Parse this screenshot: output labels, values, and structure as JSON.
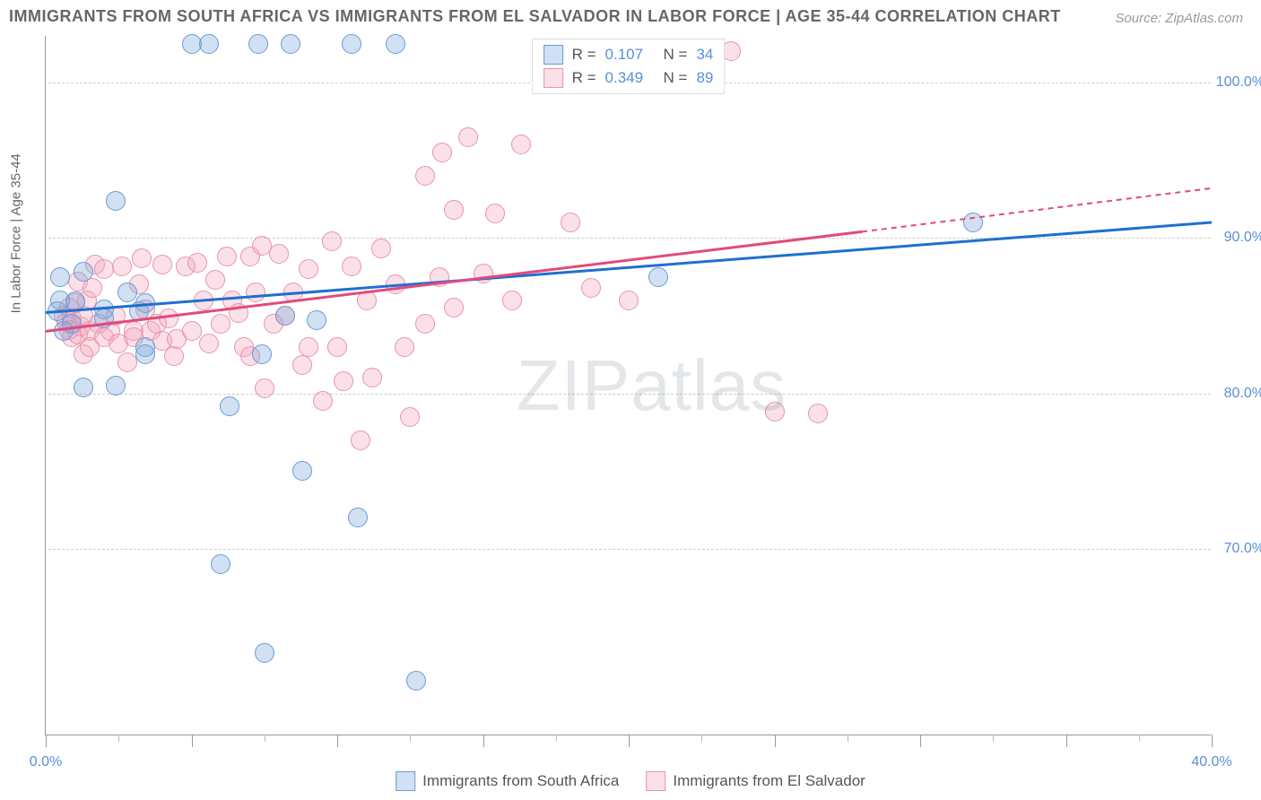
{
  "title": "IMMIGRANTS FROM SOUTH AFRICA VS IMMIGRANTS FROM EL SALVADOR IN LABOR FORCE | AGE 35-44 CORRELATION CHART",
  "source": "Source: ZipAtlas.com",
  "y_axis_label": "In Labor Force | Age 35-44",
  "watermark_a": "ZIP",
  "watermark_b": "atlas",
  "chart": {
    "type": "scatter",
    "xlim": [
      0,
      40
    ],
    "ylim": [
      58,
      103
    ],
    "x_ticks_labeled": [
      {
        "v": 0,
        "label": "0.0%"
      },
      {
        "v": 40,
        "label": "40.0%"
      }
    ],
    "x_ticks_major": [
      0,
      5,
      10,
      15,
      20,
      25,
      30,
      35,
      40
    ],
    "x_ticks_minor": [
      2.5,
      7.5,
      12.5,
      17.5,
      22.5,
      27.5,
      32.5,
      37.5
    ],
    "y_ticks": [
      {
        "v": 70,
        "label": "70.0%"
      },
      {
        "v": 80,
        "label": "80.0%"
      },
      {
        "v": 90,
        "label": "90.0%"
      },
      {
        "v": 100,
        "label": "100.0%"
      }
    ],
    "background_color": "#ffffff",
    "grid_color": "#cccccc",
    "point_radius": 11,
    "series": [
      {
        "name": "Immigrants from South Africa",
        "fill": "rgba(122,165,218,0.35)",
        "stroke": "#6a9bd4",
        "line_color": "#1f6fd1",
        "R": "0.107",
        "N": "34",
        "trend": {
          "x1": 0,
          "y1": 85.2,
          "x2": 40,
          "y2": 91.0
        },
        "points": [
          [
            0.4,
            85.3
          ],
          [
            0.5,
            86.0
          ],
          [
            0.5,
            87.5
          ],
          [
            0.6,
            84.0
          ],
          [
            0.9,
            84.5
          ],
          [
            1.0,
            85.9
          ],
          [
            1.3,
            80.4
          ],
          [
            1.3,
            87.8
          ],
          [
            2.0,
            85.4
          ],
          [
            2.0,
            84.8
          ],
          [
            2.4,
            92.4
          ],
          [
            2.4,
            80.5
          ],
          [
            2.8,
            86.5
          ],
          [
            3.2,
            85.3
          ],
          [
            3.4,
            85.8
          ],
          [
            3.4,
            83.0
          ],
          [
            3.4,
            82.5
          ],
          [
            5.0,
            102.5
          ],
          [
            5.6,
            102.5
          ],
          [
            6.0,
            69.0
          ],
          [
            6.3,
            79.2
          ],
          [
            7.3,
            102.5
          ],
          [
            7.4,
            82.5
          ],
          [
            7.5,
            63.3
          ],
          [
            8.2,
            85.0
          ],
          [
            8.4,
            102.5
          ],
          [
            8.8,
            75.0
          ],
          [
            9.3,
            84.7
          ],
          [
            10.5,
            102.5
          ],
          [
            10.7,
            72.0
          ],
          [
            12.0,
            102.5
          ],
          [
            12.7,
            61.5
          ],
          [
            21.0,
            87.5
          ],
          [
            31.8,
            91.0
          ]
        ]
      },
      {
        "name": "Immigrants from El Salvador",
        "fill": "rgba(244,166,189,0.35)",
        "stroke": "#e794ad",
        "line_color": "#e34a7a",
        "R": "0.349",
        "N": "89",
        "trend": {
          "x1": 0,
          "y1": 84.0,
          "x2": 28,
          "y2": 90.4
        },
        "trend_dash": {
          "x1": 28,
          "y1": 90.4,
          "x2": 40,
          "y2": 93.2
        },
        "points": [
          [
            0.6,
            85.0
          ],
          [
            0.7,
            84.6
          ],
          [
            0.8,
            84.1
          ],
          [
            0.8,
            85.5
          ],
          [
            0.9,
            83.6
          ],
          [
            0.9,
            84.8
          ],
          [
            1.0,
            85.8
          ],
          [
            1.1,
            87.2
          ],
          [
            1.1,
            83.8
          ],
          [
            1.2,
            84.3
          ],
          [
            1.3,
            85.0
          ],
          [
            1.3,
            82.5
          ],
          [
            1.4,
            86.0
          ],
          [
            1.5,
            84.0
          ],
          [
            1.5,
            83.0
          ],
          [
            1.6,
            86.8
          ],
          [
            1.7,
            88.3
          ],
          [
            1.8,
            84.5
          ],
          [
            2.0,
            83.6
          ],
          [
            2.0,
            88.0
          ],
          [
            2.2,
            84.0
          ],
          [
            2.4,
            85.0
          ],
          [
            2.5,
            83.2
          ],
          [
            2.6,
            88.2
          ],
          [
            2.8,
            82.0
          ],
          [
            3.0,
            84.0
          ],
          [
            3.0,
            83.6
          ],
          [
            3.2,
            87.0
          ],
          [
            3.3,
            88.7
          ],
          [
            3.4,
            85.4
          ],
          [
            3.6,
            84.0
          ],
          [
            3.8,
            84.5
          ],
          [
            4.0,
            83.4
          ],
          [
            4.0,
            88.3
          ],
          [
            4.2,
            84.8
          ],
          [
            4.4,
            82.4
          ],
          [
            4.5,
            83.5
          ],
          [
            4.8,
            88.2
          ],
          [
            5.0,
            84.0
          ],
          [
            5.2,
            88.4
          ],
          [
            5.4,
            86.0
          ],
          [
            5.6,
            83.2
          ],
          [
            5.8,
            87.3
          ],
          [
            6.0,
            84.5
          ],
          [
            6.2,
            88.8
          ],
          [
            6.4,
            86.0
          ],
          [
            6.6,
            85.2
          ],
          [
            6.8,
            83.0
          ],
          [
            7.0,
            88.8
          ],
          [
            7.0,
            82.4
          ],
          [
            7.2,
            86.5
          ],
          [
            7.4,
            89.5
          ],
          [
            7.5,
            80.3
          ],
          [
            7.8,
            84.5
          ],
          [
            8.0,
            89.0
          ],
          [
            8.2,
            85.0
          ],
          [
            8.5,
            86.5
          ],
          [
            8.8,
            81.8
          ],
          [
            9.0,
            83.0
          ],
          [
            9.0,
            88.0
          ],
          [
            9.5,
            79.5
          ],
          [
            9.8,
            89.8
          ],
          [
            10.0,
            83.0
          ],
          [
            10.2,
            80.8
          ],
          [
            10.5,
            88.2
          ],
          [
            10.8,
            77.0
          ],
          [
            11.0,
            86.0
          ],
          [
            11.2,
            81.0
          ],
          [
            11.5,
            89.3
          ],
          [
            12.0,
            87.0
          ],
          [
            12.3,
            83.0
          ],
          [
            12.5,
            78.5
          ],
          [
            13.0,
            94.0
          ],
          [
            13.0,
            84.5
          ],
          [
            13.5,
            87.5
          ],
          [
            13.6,
            95.5
          ],
          [
            14.0,
            91.8
          ],
          [
            14.0,
            85.5
          ],
          [
            14.5,
            96.5
          ],
          [
            15.0,
            87.7
          ],
          [
            15.4,
            91.6
          ],
          [
            16.0,
            86.0
          ],
          [
            16.3,
            96.0
          ],
          [
            18.0,
            91.0
          ],
          [
            18.7,
            86.8
          ],
          [
            20.0,
            86.0
          ],
          [
            23.5,
            102.0
          ],
          [
            25.0,
            78.8
          ],
          [
            26.5,
            78.7
          ]
        ]
      }
    ]
  },
  "legend_top": {
    "rows": [
      {
        "swatch_fill": "rgba(122,165,218,0.35)",
        "swatch_stroke": "#6a9bd4",
        "r_label": "R  =",
        "r_val": "0.107",
        "n_label": "N  =",
        "n_val": "34"
      },
      {
        "swatch_fill": "rgba(244,166,189,0.35)",
        "swatch_stroke": "#e794ad",
        "r_label": "R  =",
        "r_val": "0.349",
        "n_label": "N  =",
        "n_val": "89"
      }
    ]
  },
  "legend_bottom": [
    {
      "swatch_fill": "rgba(122,165,218,0.35)",
      "swatch_stroke": "#6a9bd4",
      "label": "Immigrants from South Africa"
    },
    {
      "swatch_fill": "rgba(244,166,189,0.35)",
      "swatch_stroke": "#e794ad",
      "label": "Immigrants from El Salvador"
    }
  ]
}
